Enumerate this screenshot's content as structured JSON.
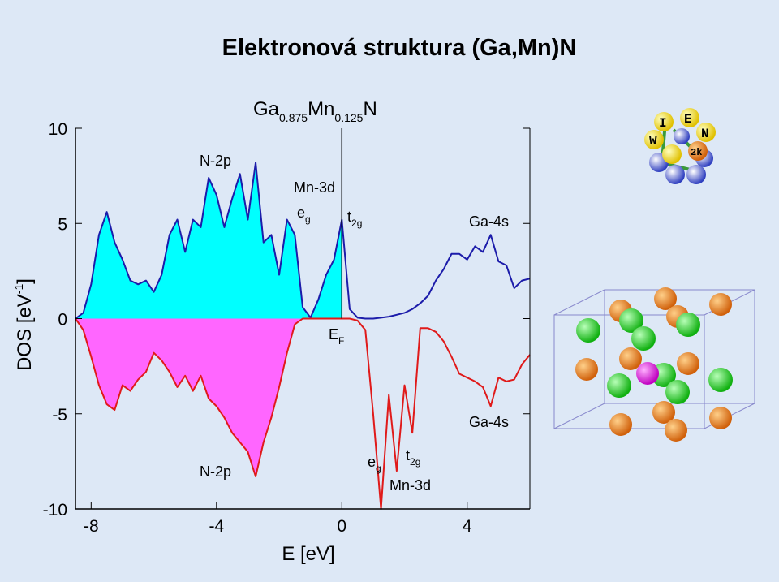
{
  "chart_data": {
    "type": "dos",
    "title": "Elektronová struktura (Ga,Mn)N",
    "subtitle_parts": [
      "Ga",
      "0.875",
      "Mn",
      "0.125",
      "N"
    ],
    "xlabel": "E [eV]",
    "ylabel_parts": [
      "DOS [eV",
      "-1",
      "]"
    ],
    "x": [
      -8.5,
      -8.25,
      -8,
      -7.75,
      -7.5,
      -7.25,
      -7,
      -6.75,
      -6.5,
      -6.25,
      -6,
      -5.75,
      -5.5,
      -5.25,
      -5,
      -4.75,
      -4.5,
      -4.25,
      -4,
      -3.75,
      -3.5,
      -3.25,
      -3,
      -2.75,
      -2.5,
      -2.25,
      -2,
      -1.75,
      -1.5,
      -1.25,
      -1,
      -0.75,
      -0.5,
      -0.25,
      0,
      0.25,
      0.5,
      0.75,
      1,
      1.25,
      1.5,
      1.75,
      2,
      2.25,
      2.5,
      2.75,
      3,
      3.25,
      3.5,
      3.75,
      4,
      4.25,
      4.5,
      4.75,
      5,
      5.25,
      5.5,
      5.75,
      6
    ],
    "series": [
      {
        "color": "#1c1caa",
        "fill": "#00ffff",
        "values": [
          0,
          0.3,
          1.8,
          4.4,
          5.6,
          4.0,
          3.1,
          2.0,
          1.8,
          2.0,
          1.4,
          2.3,
          4.4,
          5.2,
          3.5,
          5.2,
          4.8,
          7.4,
          6.5,
          4.8,
          6.3,
          7.6,
          5.2,
          8.2,
          4.0,
          4.4,
          2.3,
          5.2,
          4.4,
          0.6,
          0.05,
          1.0,
          2.3,
          3.1,
          5.2,
          0.5,
          0.05,
          0,
          0,
          0.05,
          0.1,
          0.2,
          0.3,
          0.5,
          0.8,
          1.2,
          2.0,
          2.6,
          3.4,
          3.4,
          3.1,
          3.8,
          3.5,
          4.4,
          3.0,
          2.8,
          1.6,
          2.0,
          2.1
        ]
      },
      {
        "color": "#e01a1a",
        "fill": "#ff66ff",
        "values": [
          0,
          -0.6,
          -2.0,
          -3.5,
          -4.5,
          -4.8,
          -3.5,
          -3.8,
          -3.2,
          -2.8,
          -1.8,
          -2.2,
          -2.8,
          -3.6,
          -3.0,
          -3.8,
          -3.0,
          -4.2,
          -4.6,
          -5.2,
          -6.0,
          -6.5,
          -7.0,
          -8.3,
          -6.5,
          -5.2,
          -3.6,
          -1.8,
          -0.3,
          0,
          0,
          0,
          0,
          0,
          0,
          0,
          -0.1,
          -0.6,
          -5.0,
          -10.0,
          -4.0,
          -8.0,
          -3.5,
          -6.0,
          -0.5,
          -0.5,
          -0.7,
          -1.2,
          -2.0,
          -2.9,
          -3.1,
          -3.3,
          -3.6,
          -4.6,
          -3.1,
          -3.3,
          -3.2,
          -2.4,
          -1.9
        ]
      }
    ],
    "xlim": [
      -8.5,
      6
    ],
    "ylim": [
      -10,
      10
    ],
    "xticks": [
      -8,
      -4,
      0,
      4
    ],
    "yticks": [
      -10,
      -5,
      0,
      5,
      10
    ],
    "annotations": [
      {
        "text": "N-2p"
      },
      {
        "text": "Mn-3d"
      },
      {
        "text": "e",
        "sub": "g"
      },
      {
        "text": "t",
        "sub": "2g"
      },
      {
        "text": "Ga-4s"
      },
      {
        "text": "E",
        "sub": "F"
      },
      {
        "text": "Ga-4s"
      },
      {
        "text": "N-2p"
      },
      {
        "text": "e",
        "sub": "g"
      },
      {
        "text": "t",
        "sub": "2g"
      },
      {
        "text": "Mn-3d"
      }
    ]
  }
}
